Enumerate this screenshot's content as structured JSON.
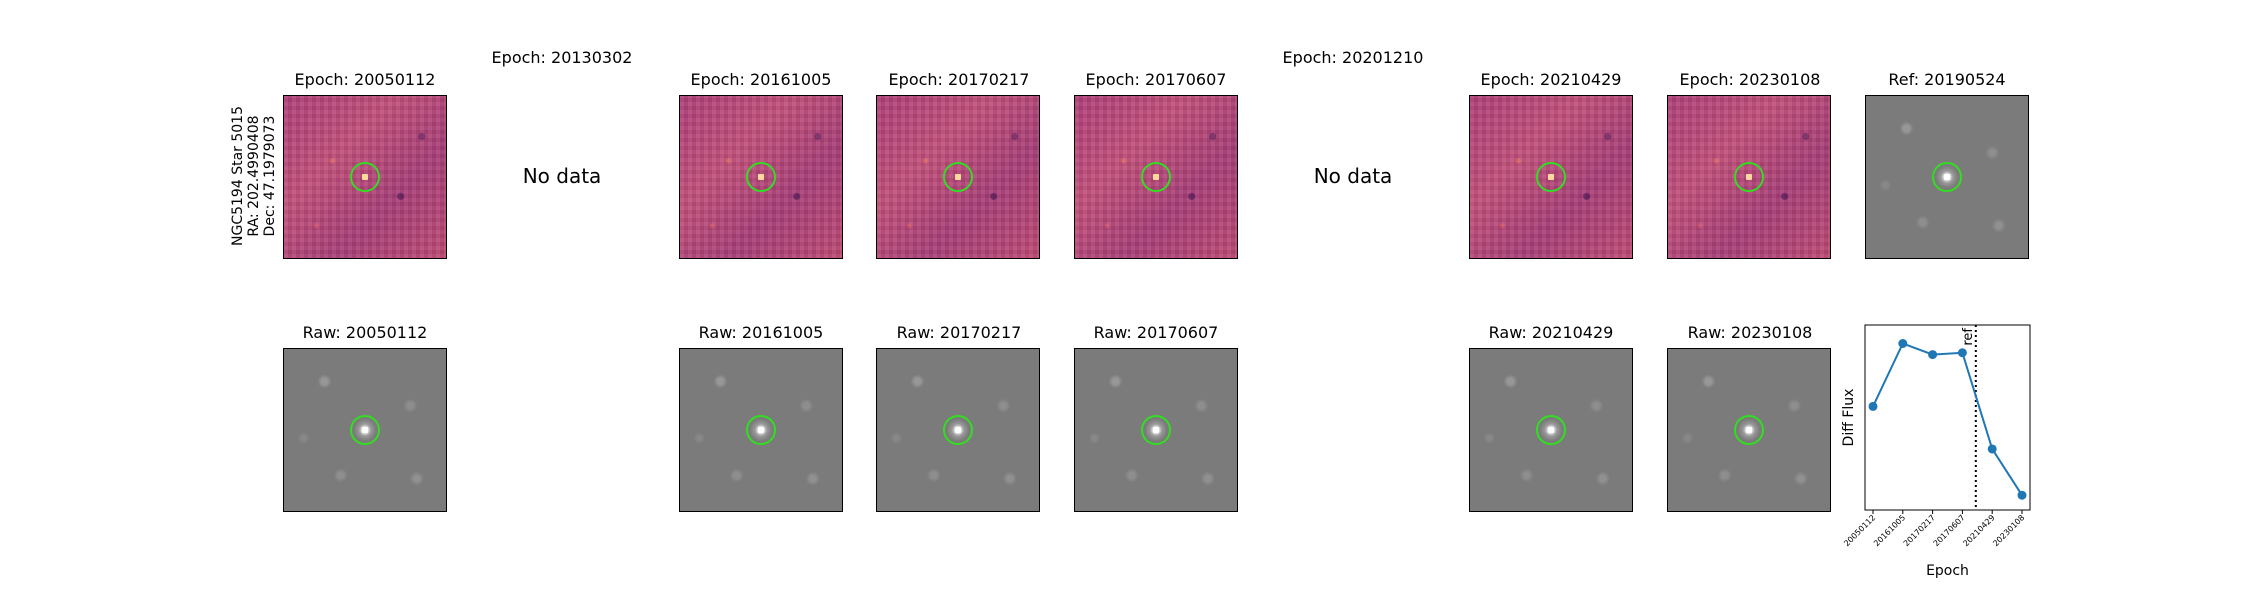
{
  "object_label": {
    "line1": "NGC5194 Star 5015",
    "line2": "RA: 202.4990408",
    "line3": "Dec: 47.1979073"
  },
  "no_data_text": "No data",
  "top_titles": {
    "e20050112": "Epoch: 20050112",
    "e20130302": "Epoch: 20130302",
    "e20161005": "Epoch: 20161005",
    "e20170217": "Epoch: 20170217",
    "e20170607": "Epoch: 20170607",
    "e20201210": "Epoch: 20201210",
    "e20210429": "Epoch: 20210429",
    "e20230108": "Epoch: 20230108",
    "ref": "Ref: 20190524"
  },
  "bottom_titles": {
    "r20050112": "Raw: 20050112",
    "r20161005": "Raw: 20161005",
    "r20170217": "Raw: 20170217",
    "r20170607": "Raw: 20170607",
    "r20210429": "Raw: 20210429",
    "r20230108": "Raw: 20230108"
  },
  "colors": {
    "series": "#1f77b4",
    "circle": "#33dd22"
  },
  "chart_data": {
    "type": "line",
    "categories": [
      "20050112",
      "20161005",
      "20170217",
      "20170607",
      "20210429",
      "20230108"
    ],
    "values": [
      0.56,
      0.9,
      0.84,
      0.85,
      0.33,
      0.08
    ],
    "ylim": [
      0,
      1
    ],
    "xlabel": "Epoch",
    "ylabel": "Diff Flux",
    "ref_line": {
      "position_between": [
        3,
        4
      ],
      "fraction": 0.45,
      "label": "ref"
    },
    "grid": false
  }
}
